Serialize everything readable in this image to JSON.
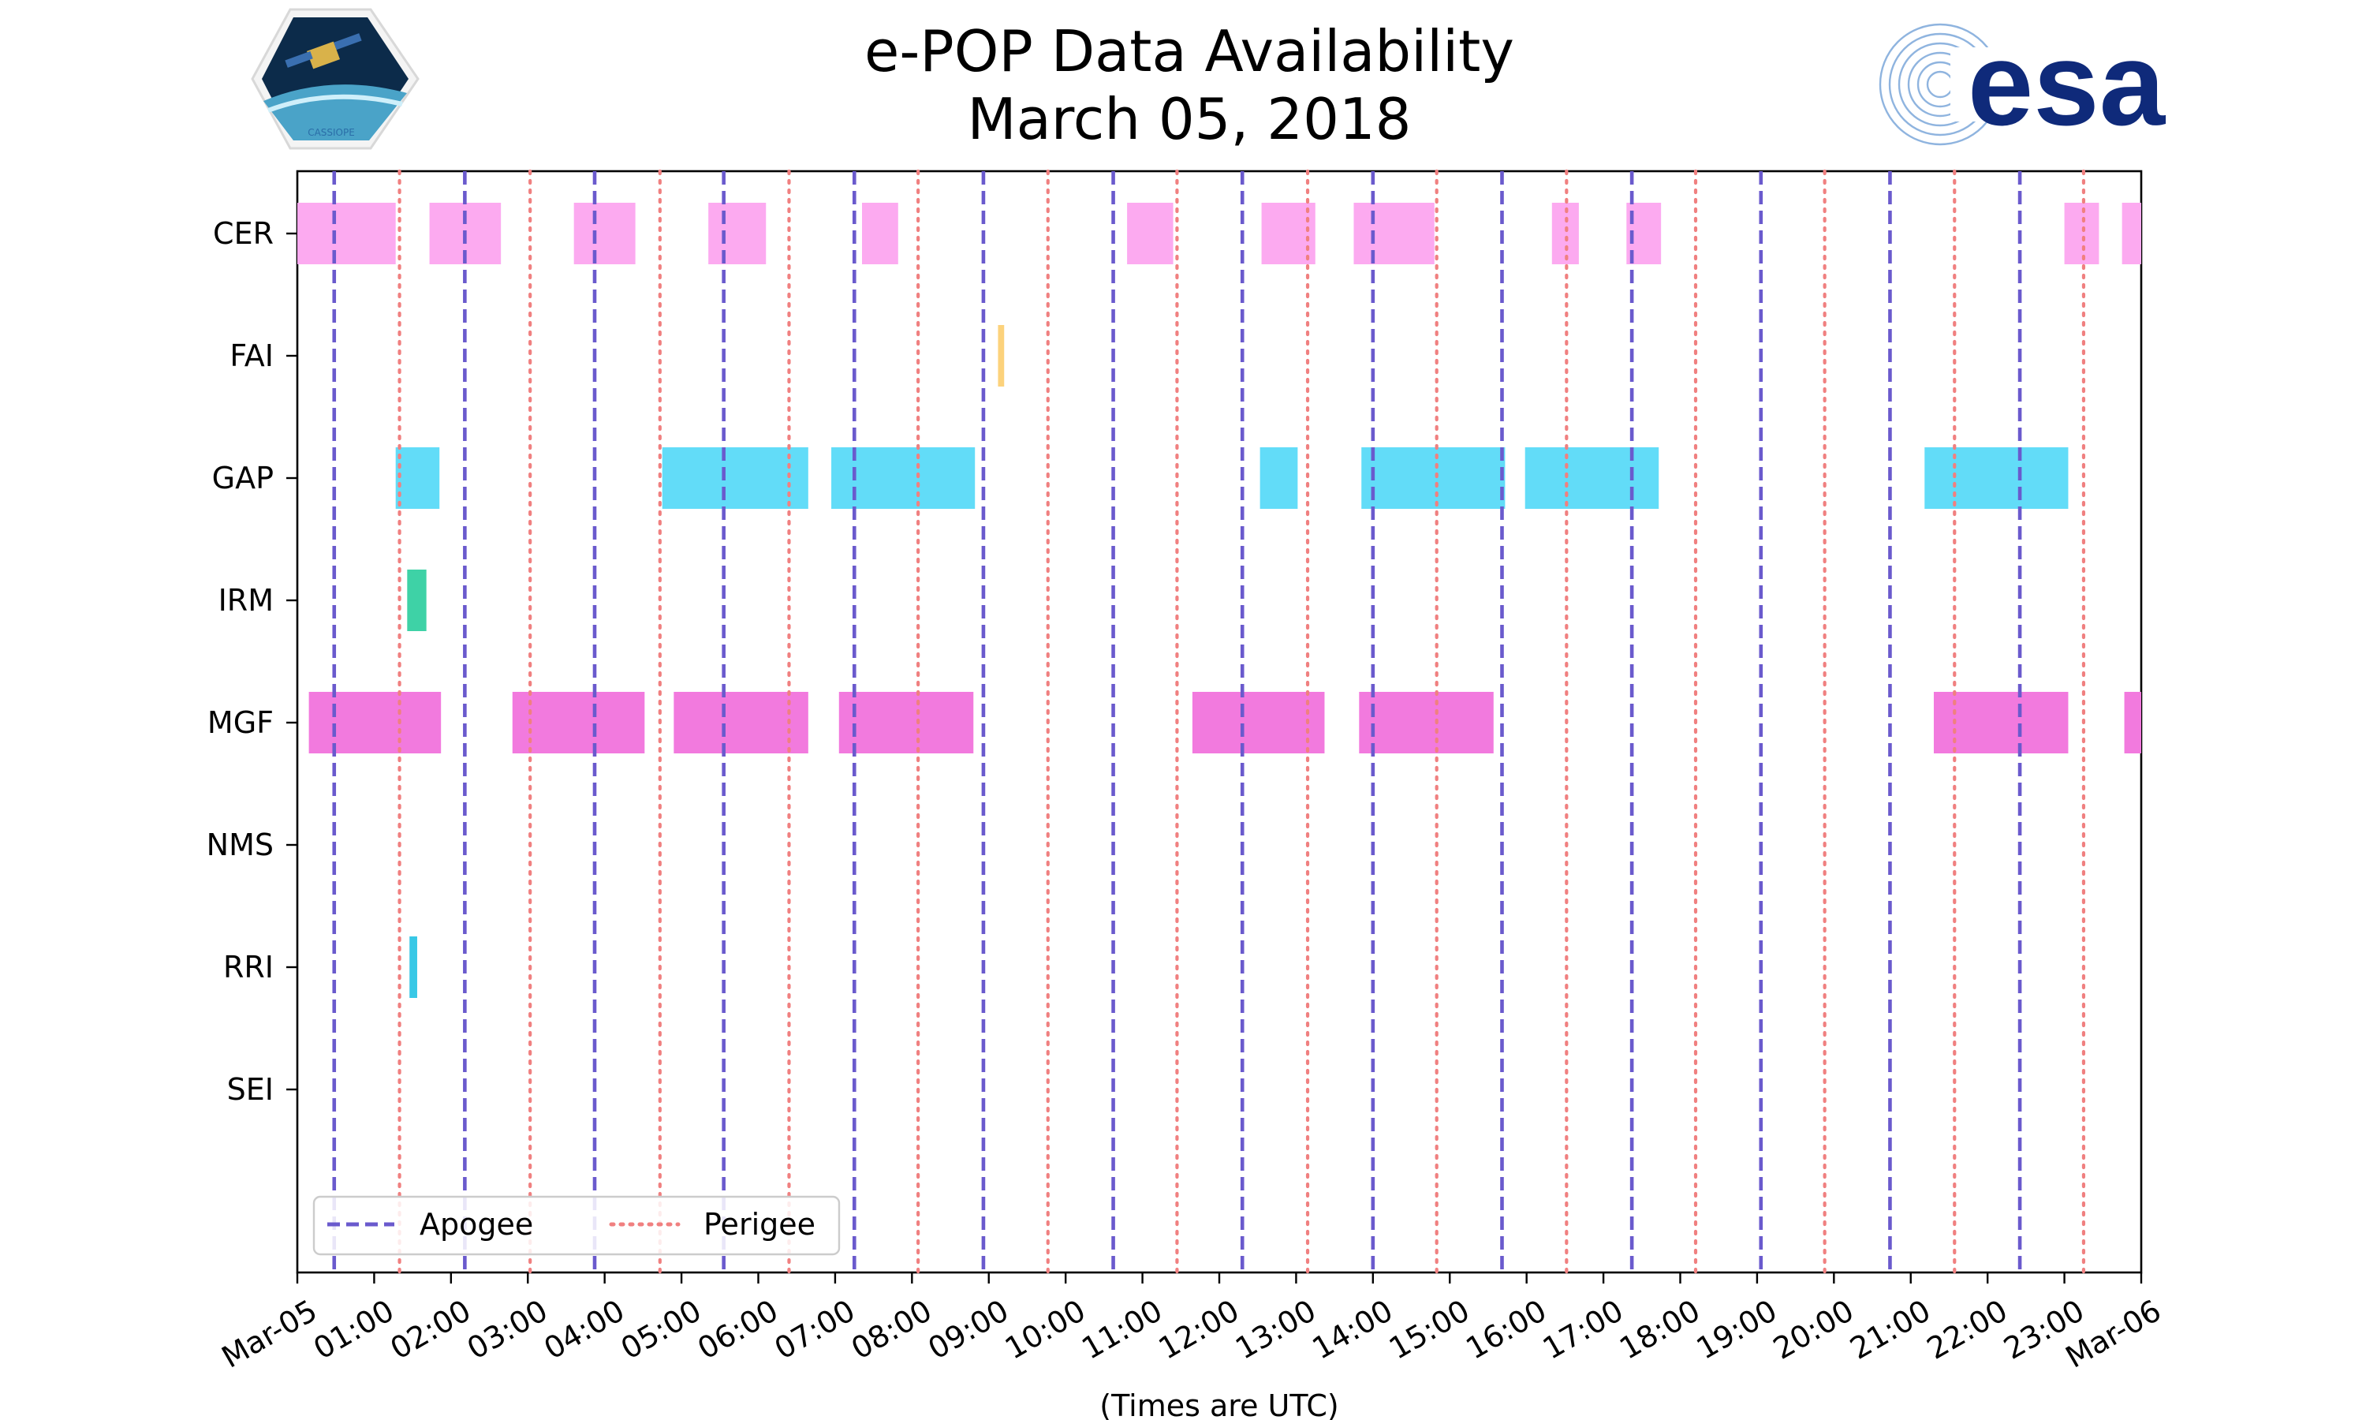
{
  "title": {
    "line1": "e-POP Data Availability",
    "line2": "March 05, 2018"
  },
  "logos": {
    "left": {
      "icon": "cassiope-mission-patch",
      "caption": "CASSIOPE"
    },
    "right": {
      "icon": "esa-logo",
      "text": "esa",
      "color": "#0f2a7a"
    }
  },
  "chart_data": {
    "type": "gantt",
    "xlabel": "(Times are UTC)",
    "xlim_hours": [
      0,
      24
    ],
    "xticks": [
      "Mar-05",
      "01:00",
      "02:00",
      "03:00",
      "04:00",
      "05:00",
      "06:00",
      "07:00",
      "08:00",
      "09:00",
      "10:00",
      "11:00",
      "12:00",
      "13:00",
      "14:00",
      "15:00",
      "16:00",
      "17:00",
      "18:00",
      "19:00",
      "20:00",
      "21:00",
      "22:00",
      "23:00",
      "Mar-06"
    ],
    "instruments": [
      "CER",
      "FAI",
      "GAP",
      "IRM",
      "MGF",
      "NMS",
      "RRI",
      "SEI"
    ],
    "colors": {
      "CER": "#fcaaf0",
      "FAI": "#fcd27c",
      "GAP": "#62dcf8",
      "IRM": "#3ed2a6",
      "MGF": "#f27ade",
      "NMS": "#999999",
      "RRI": "#38c8e6",
      "SEI": "#999999"
    },
    "intervals": {
      "CER": [
        [
          0.0,
          1.28
        ],
        [
          1.72,
          2.65
        ],
        [
          3.6,
          4.4
        ],
        [
          5.35,
          6.1
        ],
        [
          7.35,
          7.82
        ],
        [
          10.8,
          11.4
        ],
        [
          12.55,
          13.25
        ],
        [
          13.75,
          14.8
        ],
        [
          16.33,
          16.68
        ],
        [
          17.3,
          17.75
        ],
        [
          23.0,
          23.45
        ],
        [
          23.75,
          24.0
        ]
      ],
      "FAI": [
        [
          9.12,
          9.2
        ]
      ],
      "GAP": [
        [
          1.28,
          1.85
        ],
        [
          4.75,
          6.65
        ],
        [
          6.95,
          8.82
        ],
        [
          12.53,
          13.02
        ],
        [
          13.85,
          15.72
        ],
        [
          15.98,
          17.72
        ],
        [
          21.18,
          23.05
        ]
      ],
      "IRM": [
        [
          1.43,
          1.68
        ]
      ],
      "MGF": [
        [
          0.15,
          1.87
        ],
        [
          2.8,
          4.52
        ],
        [
          4.9,
          6.65
        ],
        [
          7.05,
          8.8
        ],
        [
          11.65,
          13.37
        ],
        [
          13.82,
          15.57
        ],
        [
          21.3,
          23.05
        ],
        [
          23.78,
          24.0
        ]
      ],
      "NMS": [],
      "RRI": [
        [
          1.46,
          1.56
        ]
      ],
      "SEI": []
    },
    "apogee_hours": [
      0.48,
      2.18,
      3.87,
      5.55,
      7.25,
      8.93,
      10.62,
      12.3,
      14.0,
      15.68,
      17.37,
      19.05,
      20.73,
      22.42
    ],
    "perigee_hours": [
      1.33,
      3.03,
      4.72,
      6.4,
      8.08,
      9.77,
      11.45,
      13.15,
      14.83,
      16.52,
      18.2,
      19.88,
      21.57,
      23.25
    ],
    "legend": [
      {
        "label": "Apogee",
        "style": "dashed",
        "color": "#6a5acd"
      },
      {
        "label": "Perigee",
        "style": "dotted",
        "color": "#f08080"
      }
    ],
    "legend_position": "lower-left"
  }
}
